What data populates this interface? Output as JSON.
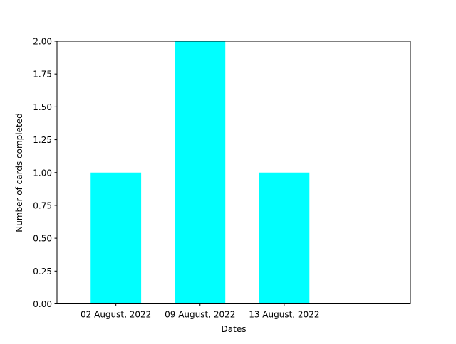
{
  "chart_data": {
    "type": "bar",
    "categories": [
      "02 August, 2022",
      "09 August, 2022",
      "13 August, 2022"
    ],
    "values": [
      1,
      2,
      1
    ],
    "title": "",
    "xlabel": "Dates",
    "ylabel": "Number of cards completed",
    "ylim": [
      0,
      2.0
    ],
    "yticks": [
      "0.00",
      "0.25",
      "0.50",
      "0.75",
      "1.00",
      "1.25",
      "1.50",
      "1.75",
      "2.00"
    ],
    "bar_color": "#00ffff",
    "grid": false,
    "legend": "none"
  }
}
